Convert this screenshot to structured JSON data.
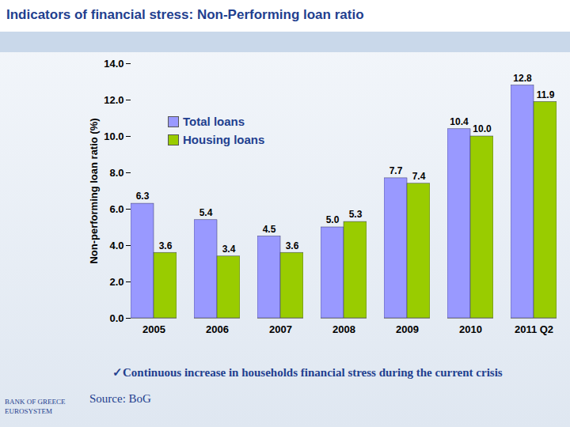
{
  "chart_data": {
    "type": "bar",
    "title": "Indicators of financial stress: Non-Performing loan ratio",
    "y_label": "Non-performing loan ratio (%)",
    "categories": [
      "2005",
      "2006",
      "2007",
      "2008",
      "2009",
      "2010",
      "2011 Q2"
    ],
    "series": [
      {
        "name": "Total loans",
        "color": "#9999ff",
        "values": [
          6.3,
          5.4,
          4.5,
          5.0,
          7.7,
          10.4,
          12.8
        ],
        "value_labels": [
          "6.3",
          "5.4",
          "4.5",
          "5.0",
          "7.7",
          "10.4",
          "12.8"
        ]
      },
      {
        "name": "Housing loans",
        "color": "#99cc00",
        "values": [
          3.6,
          3.4,
          3.6,
          5.3,
          7.4,
          10.0,
          11.9
        ],
        "value_labels": [
          "3.6",
          "3.4",
          "3.6",
          "5.3",
          "7.4",
          "10.0",
          "11.9"
        ]
      }
    ],
    "ylim": [
      0,
      14
    ],
    "yticks": [
      {
        "value": 0,
        "label": "0.0"
      },
      {
        "value": 2,
        "label": "2.0"
      },
      {
        "value": 4,
        "label": "4.0"
      },
      {
        "value": 6,
        "label": "6.0"
      },
      {
        "value": 8,
        "label": "8.0"
      },
      {
        "value": 10,
        "label": "10.0"
      },
      {
        "value": 12,
        "label": "12.0"
      },
      {
        "value": 14,
        "label": "14.0"
      }
    ],
    "grid": false,
    "legend": "top-left",
    "data_labels": true,
    "note": "✓Continuous increase in households financial stress during the current crisis",
    "source": "Source: BoG",
    "brand": [
      "BANK OF GREECE",
      "EUROSYSTEM"
    ]
  }
}
